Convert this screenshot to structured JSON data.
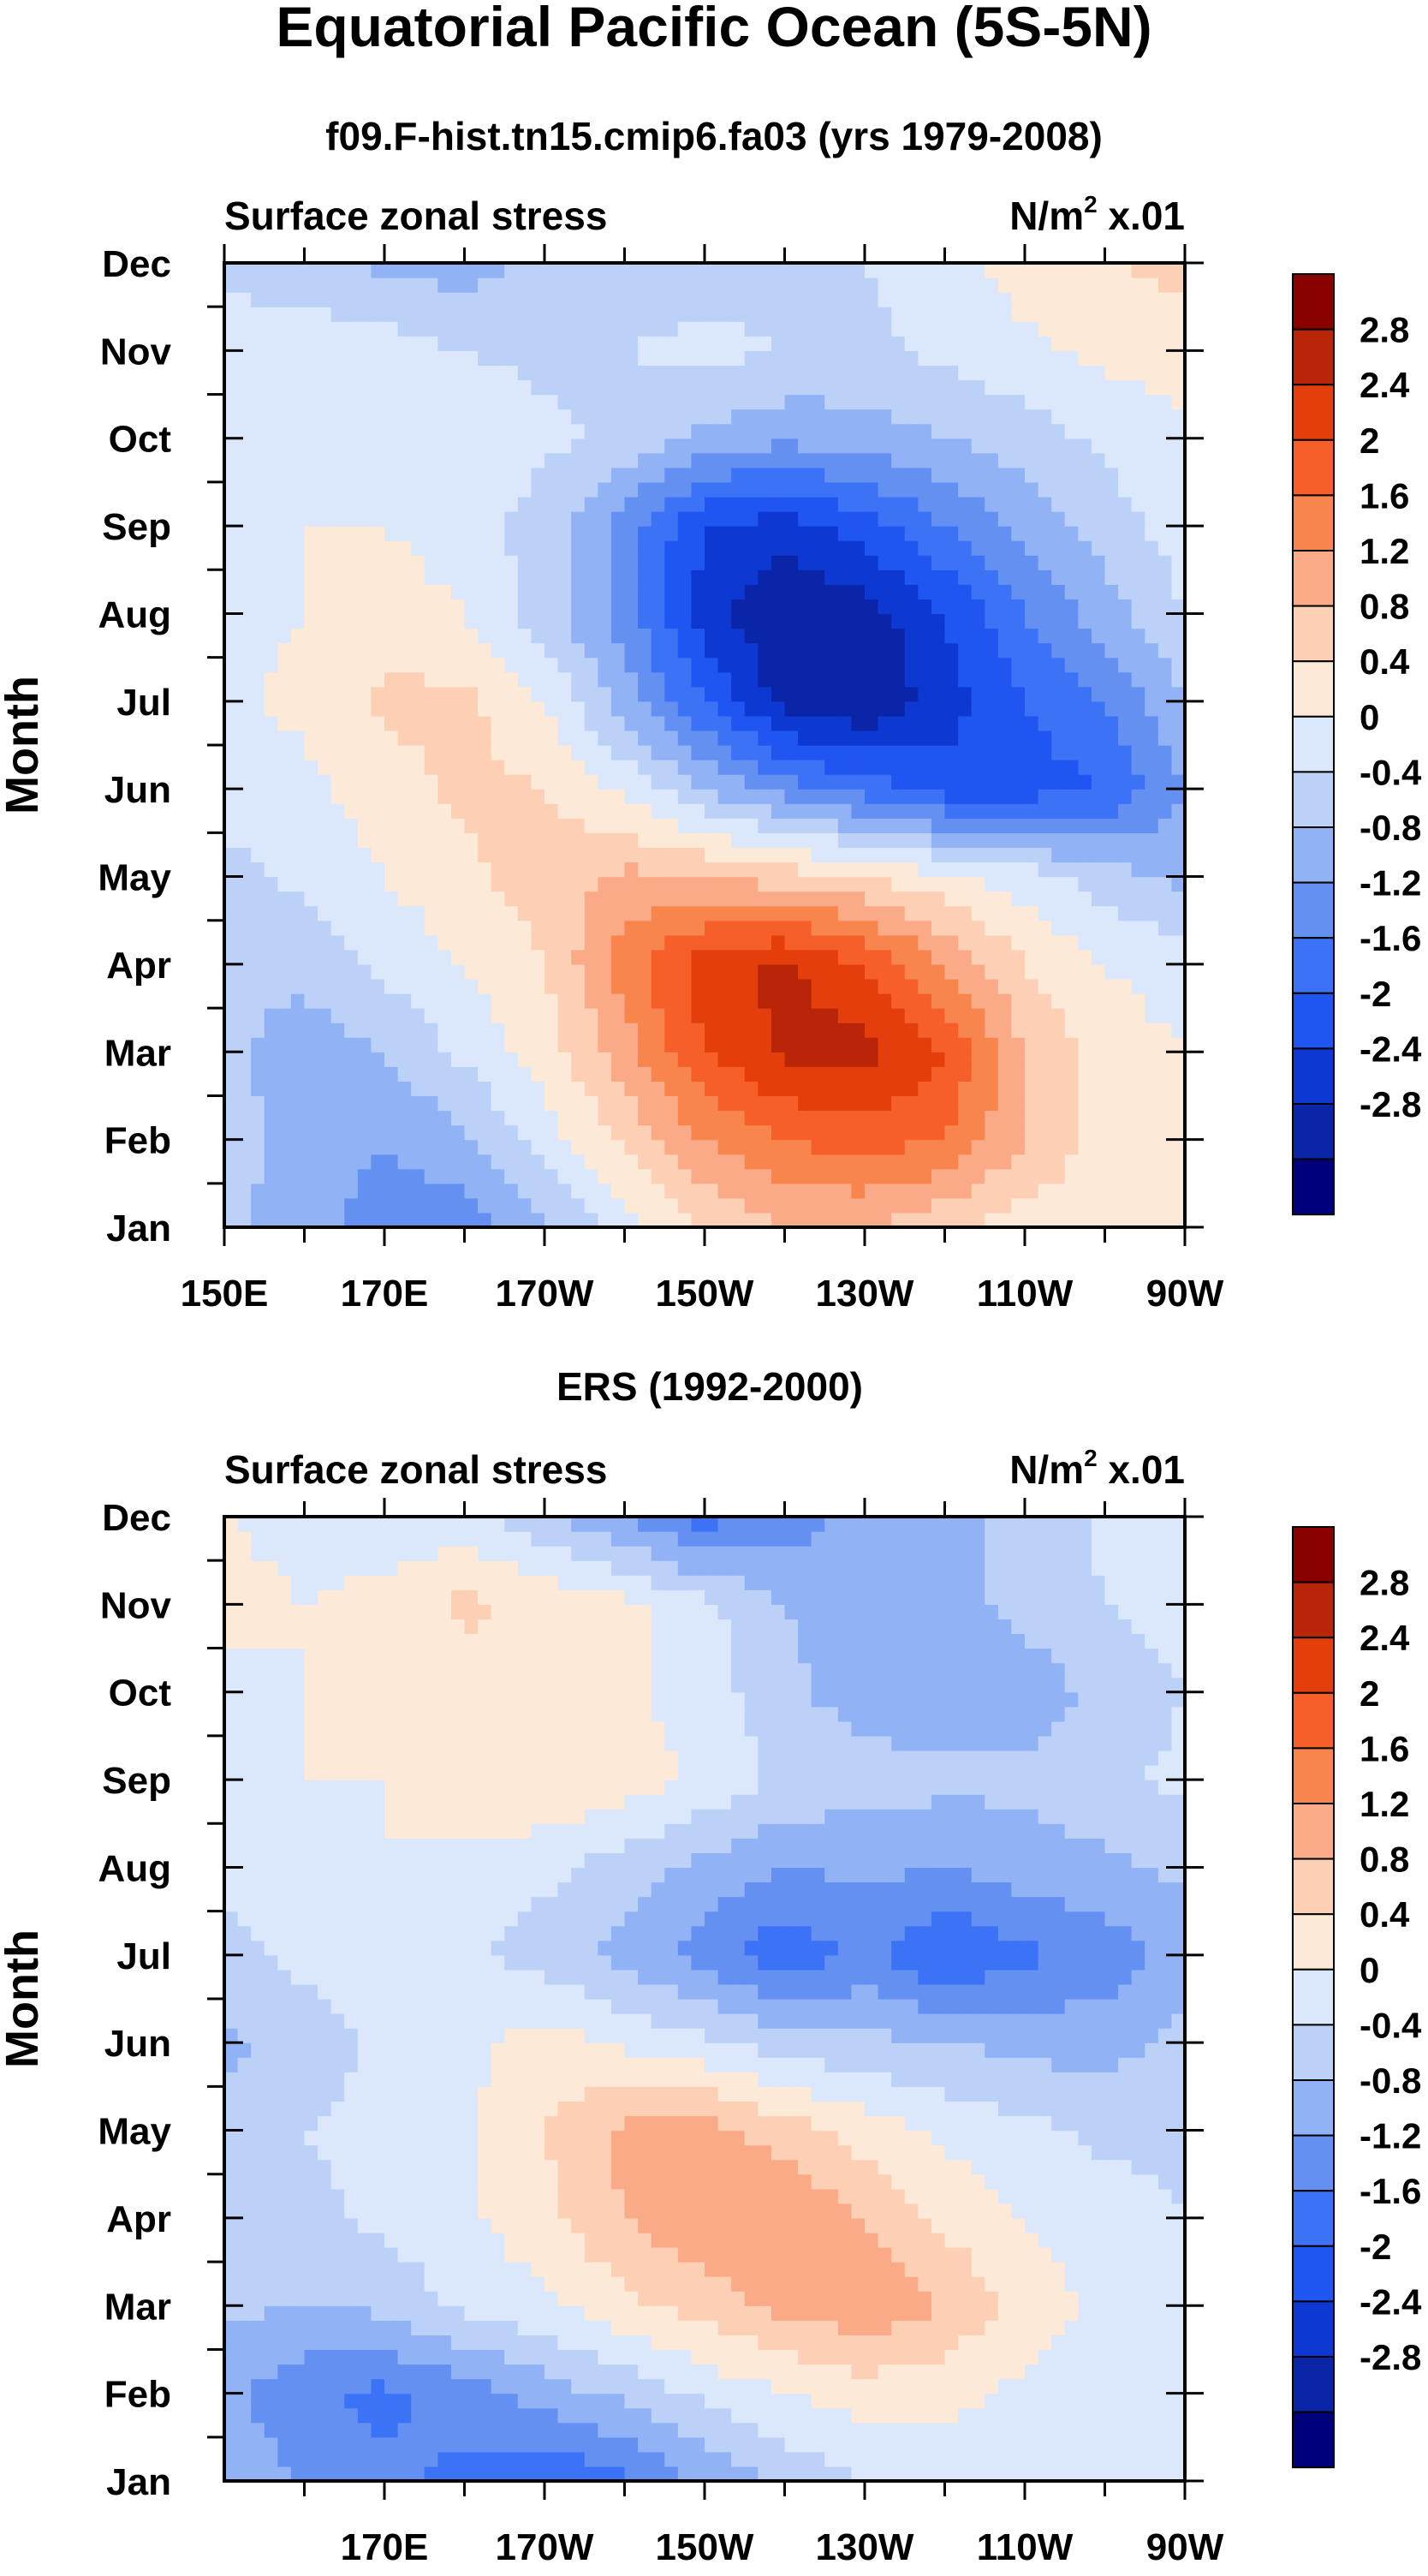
{
  "figure": {
    "title": "Equatorial Pacific Ocean (5S-5N)",
    "subtitle_top": "f09.F-hist.tn15.cmip6.fa03 (yrs 1979-2008)",
    "subtitle_bottom": "ERS (1992-2000)"
  },
  "colors": {
    "levels": [
      "#00007d",
      "#0a25a8",
      "#0d39d2",
      "#1f55f0",
      "#3c72f5",
      "#6490f2",
      "#91b2f5",
      "#bcd1f8",
      "#dbe8fc",
      "#fde9d8",
      "#fdd0b6",
      "#fbaa87",
      "#f8854d",
      "#f65f2a",
      "#e43e0c",
      "#b82508",
      "#8a0200"
    ],
    "frame": "#000000",
    "background": "#ffffff"
  },
  "chart_data": [
    {
      "type": "heatmap",
      "panel": "top",
      "left_label": "Surface zonal stress",
      "right_label_main": "N/m",
      "right_label_sup": "2",
      "right_label_tail": " x.01",
      "ylabel": "Month",
      "xlabel": "",
      "y_tick_labels": [
        "Jan",
        "Feb",
        "Mar",
        "Apr",
        "May",
        "Jun",
        "Jul",
        "Aug",
        "Sep",
        "Oct",
        "Nov",
        "Dec"
      ],
      "x_range": [
        150,
        270
      ],
      "x_ticks": [
        150,
        170,
        190,
        210,
        230,
        250,
        270
      ],
      "x_tick_labels": [
        "150E",
        "170E",
        "170W",
        "150W",
        "130W",
        "110W",
        "90W"
      ],
      "colorbar_labels": [
        "2.8",
        "2.4",
        "2",
        "1.6",
        "1.2",
        "0.8",
        "0.4",
        "0",
        "-0.4",
        "-0.8",
        "-1.2",
        "-1.6",
        "-2",
        "-2.4",
        "-2.8"
      ],
      "contour_levels": [
        -3.0,
        -2.8,
        -2.4,
        -2.0,
        -1.6,
        -1.2,
        -0.8,
        -0.4,
        0,
        0.4,
        0.8,
        1.2,
        1.6,
        2.0,
        2.4,
        2.8
      ],
      "lon_grid": [
        150,
        160,
        170,
        180,
        190,
        200,
        210,
        220,
        230,
        240,
        250,
        260,
        270
      ],
      "month_grid": [
        "Jan",
        "Feb",
        "Mar",
        "Apr",
        "May",
        "Jun",
        "Jul",
        "Aug",
        "Sep",
        "Oct",
        "Nov",
        "Dec"
      ],
      "values": [
        [
          -0.3,
          -0.6,
          -1.0,
          -1.0,
          -0.5,
          0.2,
          0.8,
          1.2,
          1.2,
          0.9,
          0.6,
          0.6,
          0.5
        ],
        [
          -0.2,
          -0.6,
          -0.8,
          -0.5,
          0.2,
          0.9,
          1.6,
          2.0,
          2.2,
          2.0,
          1.2,
          0.6,
          0.5
        ],
        [
          -0.3,
          -0.6,
          -0.4,
          0.1,
          0.6,
          1.4,
          2.4,
          2.9,
          3.0,
          2.4,
          1.2,
          0.6,
          0.4
        ],
        [
          -0.3,
          -0.3,
          0.1,
          0.4,
          0.8,
          1.8,
          2.6,
          2.9,
          2.4,
          1.6,
          0.8,
          0.4,
          0.2
        ],
        [
          -0.1,
          0.1,
          0.4,
          0.7,
          1.0,
          1.3,
          1.2,
          1.0,
          0.8,
          0.5,
          0.2,
          -0.2,
          -0.5
        ],
        [
          0.1,
          0.3,
          0.6,
          0.9,
          0.8,
          0.3,
          -0.4,
          -1.0,
          -1.4,
          -1.8,
          -1.8,
          -1.6,
          -0.8
        ],
        [
          0.3,
          0.5,
          0.9,
          0.9,
          0.4,
          -0.6,
          -1.6,
          -2.6,
          -2.8,
          -2.2,
          -1.6,
          -1.2,
          -0.4
        ],
        [
          0.3,
          0.4,
          0.6,
          0.4,
          -0.2,
          -1.0,
          -2.2,
          -2.8,
          -2.6,
          -2.0,
          -1.2,
          -0.6,
          0.0
        ],
        [
          0.2,
          0.4,
          0.4,
          0.2,
          -0.2,
          -1.0,
          -2.0,
          -2.2,
          -1.8,
          -1.2,
          -0.7,
          -0.2,
          0.2
        ],
        [
          0.2,
          0.3,
          0.4,
          0.3,
          0.1,
          -0.1,
          -0.5,
          -0.7,
          -0.6,
          -0.4,
          -0.2,
          0.1,
          0.3
        ],
        [
          0.2,
          0.3,
          0.2,
          0.0,
          -0.1,
          0.0,
          0.1,
          0.0,
          -0.1,
          0.1,
          0.3,
          0.5,
          0.6
        ],
        [
          -0.1,
          -0.3,
          -0.5,
          -0.6,
          -0.3,
          -0.2,
          -0.2,
          -0.1,
          0.0,
          0.2,
          0.6,
          0.8,
          0.9
        ]
      ]
    },
    {
      "type": "heatmap",
      "panel": "bottom",
      "left_label": "Surface zonal stress",
      "right_label_main": "N/m",
      "right_label_sup": "2",
      "right_label_tail": " x.01",
      "ylabel": "Month",
      "xlabel": "",
      "y_tick_labels": [
        "Jan",
        "Feb",
        "Mar",
        "Apr",
        "May",
        "Jun",
        "Jul",
        "Aug",
        "Sep",
        "Oct",
        "Nov",
        "Dec"
      ],
      "x_range": [
        150,
        270
      ],
      "x_ticks": [
        170,
        190,
        210,
        230,
        250,
        270
      ],
      "x_tick_labels": [
        "170E",
        "170W",
        "150W",
        "130W",
        "110W",
        "90W"
      ],
      "colorbar_labels": [
        "2.8",
        "2.4",
        "2",
        "1.6",
        "1.2",
        "0.8",
        "0.4",
        "0",
        "-0.4",
        "-0.8",
        "-1.2",
        "-1.6",
        "-2",
        "-2.4",
        "-2.8"
      ],
      "contour_levels": [
        -3.0,
        -2.8,
        -2.4,
        -2.0,
        -1.6,
        -1.2,
        -0.8,
        -0.4,
        0,
        0.4,
        0.8,
        1.2,
        1.6,
        2.0,
        2.4,
        2.8
      ],
      "lon_grid": [
        150,
        160,
        170,
        180,
        190,
        200,
        210,
        220,
        230,
        240,
        250,
        260,
        270
      ],
      "month_grid": [
        "Jan",
        "Feb",
        "Mar",
        "Apr",
        "May",
        "Jun",
        "Jul",
        "Aug",
        "Sep",
        "Oct",
        "Nov",
        "Dec"
      ],
      "values": [
        [
          -0.4,
          -0.9,
          -1.1,
          -1.3,
          -1.6,
          -1.3,
          -0.7,
          -0.3,
          0.0,
          0.2,
          0.3,
          0.3,
          0.2
        ],
        [
          -0.7,
          -1.1,
          -1.3,
          -1.0,
          -0.6,
          -0.3,
          0.1,
          0.4,
          0.6,
          0.5,
          0.3,
          0.2,
          0.1
        ],
        [
          -0.3,
          -0.4,
          -0.3,
          0.1,
          0.3,
          0.7,
          1.0,
          1.3,
          1.5,
          1.2,
          0.6,
          0.3,
          0.1
        ],
        [
          -0.2,
          -0.1,
          0.1,
          0.3,
          0.7,
          1.2,
          1.5,
          1.6,
          1.2,
          0.7,
          0.4,
          0.2,
          0.0
        ],
        [
          -0.2,
          0.0,
          0.1,
          0.3,
          0.8,
          1.3,
          1.4,
          1.0,
          0.6,
          0.3,
          0.1,
          -0.1,
          -0.1
        ],
        [
          -0.5,
          -0.2,
          0.1,
          0.3,
          0.6,
          0.3,
          0.1,
          -0.2,
          -0.3,
          -0.4,
          -0.5,
          -0.6,
          -0.2
        ],
        [
          -0.1,
          0.1,
          0.3,
          0.1,
          -0.2,
          -0.5,
          -1.0,
          -1.5,
          -1.1,
          -1.6,
          -1.3,
          -1.0,
          -0.7
        ],
        [
          0.1,
          0.2,
          0.4,
          0.3,
          0.1,
          -0.2,
          -0.5,
          -0.8,
          -0.7,
          -0.8,
          -0.6,
          -0.5,
          -0.3
        ],
        [
          0.2,
          0.4,
          0.4,
          0.6,
          0.8,
          0.6,
          0.3,
          -0.1,
          -0.2,
          -0.3,
          -0.3,
          -0.1,
          0.1
        ],
        [
          0.3,
          0.4,
          0.5,
          0.6,
          0.6,
          0.5,
          0.2,
          -0.3,
          -0.6,
          -0.7,
          -0.6,
          -0.3,
          0.0
        ],
        [
          0.5,
          0.4,
          0.5,
          0.9,
          0.7,
          0.5,
          0.1,
          -0.4,
          -0.6,
          -0.5,
          -0.3,
          0.0,
          0.2
        ],
        [
          0.4,
          0.3,
          0.2,
          0.1,
          -0.3,
          -0.8,
          -1.4,
          -1.0,
          -0.7,
          -0.5,
          -0.3,
          0.1,
          0.2
        ]
      ]
    }
  ]
}
